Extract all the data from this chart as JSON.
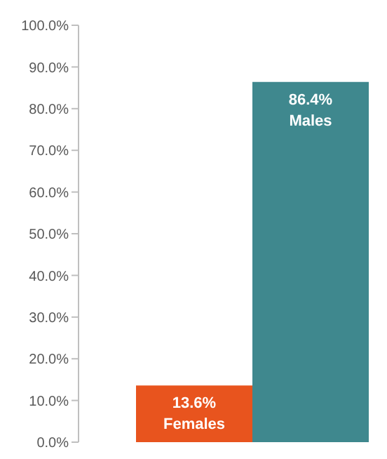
{
  "chart_data": {
    "type": "bar",
    "categories": [
      "Females",
      "Males"
    ],
    "values": [
      13.6,
      86.4
    ],
    "colors": [
      "#e8541e",
      "#3f888e"
    ],
    "value_labels": [
      "13.6%",
      "86.4%"
    ],
    "ylim": [
      0,
      100
    ],
    "yticks": [
      {
        "value": 0,
        "label": "0.0%"
      },
      {
        "value": 10,
        "label": "10.0%"
      },
      {
        "value": 20,
        "label": "20.0%"
      },
      {
        "value": 30,
        "label": "30.0%"
      },
      {
        "value": 40,
        "label": "40.0%"
      },
      {
        "value": 50,
        "label": "50.0%"
      },
      {
        "value": 60,
        "label": "60.0%"
      },
      {
        "value": 70,
        "label": "70.0%"
      },
      {
        "value": 80,
        "label": "80.0%"
      },
      {
        "value": 90,
        "label": "90.0%"
      },
      {
        "value": 100,
        "label": "100.0%"
      }
    ],
    "grid": false,
    "legend": false
  }
}
